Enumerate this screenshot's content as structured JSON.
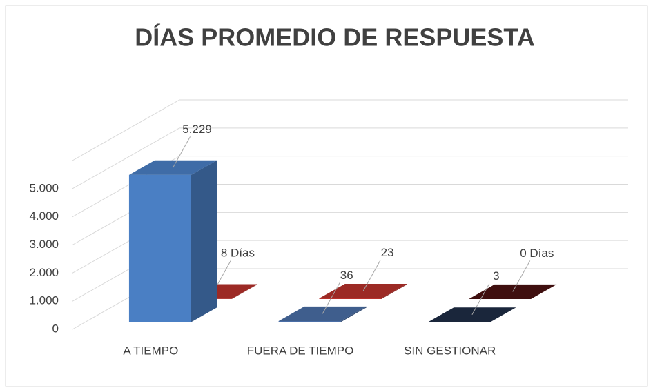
{
  "chart_data": {
    "type": "bar3d",
    "title": "DÍAS PROMEDIO DE RESPUESTA",
    "categories": [
      "A TIEMPO",
      "FUERA DE TIEMPO",
      "SIN GESTIONAR"
    ],
    "series": [
      {
        "colors": [
          "#4a7fc4",
          "#4a6ea6",
          "#1f2d45"
        ],
        "values": [
          5229,
          36,
          3
        ],
        "value_labels": [
          "5.229",
          "36",
          "3"
        ]
      },
      {
        "colors": [
          "#b8312c",
          "#b8312c",
          "#4a1212"
        ],
        "values": [
          8,
          23,
          0
        ],
        "value_labels": [
          "8 Días",
          "23",
          "0 Días"
        ]
      }
    ],
    "ylim": [
      0,
      6000
    ],
    "yticks": [
      0,
      {
        "value": 1000,
        "label": "1.000"
      },
      {
        "value": 2000,
        "label": "2.000"
      },
      {
        "value": 3000,
        "label": "3.000"
      },
      {
        "value": 4000,
        "label": "4.000"
      },
      {
        "value": 5000,
        "label": "5.000"
      }
    ],
    "grid": true
  }
}
